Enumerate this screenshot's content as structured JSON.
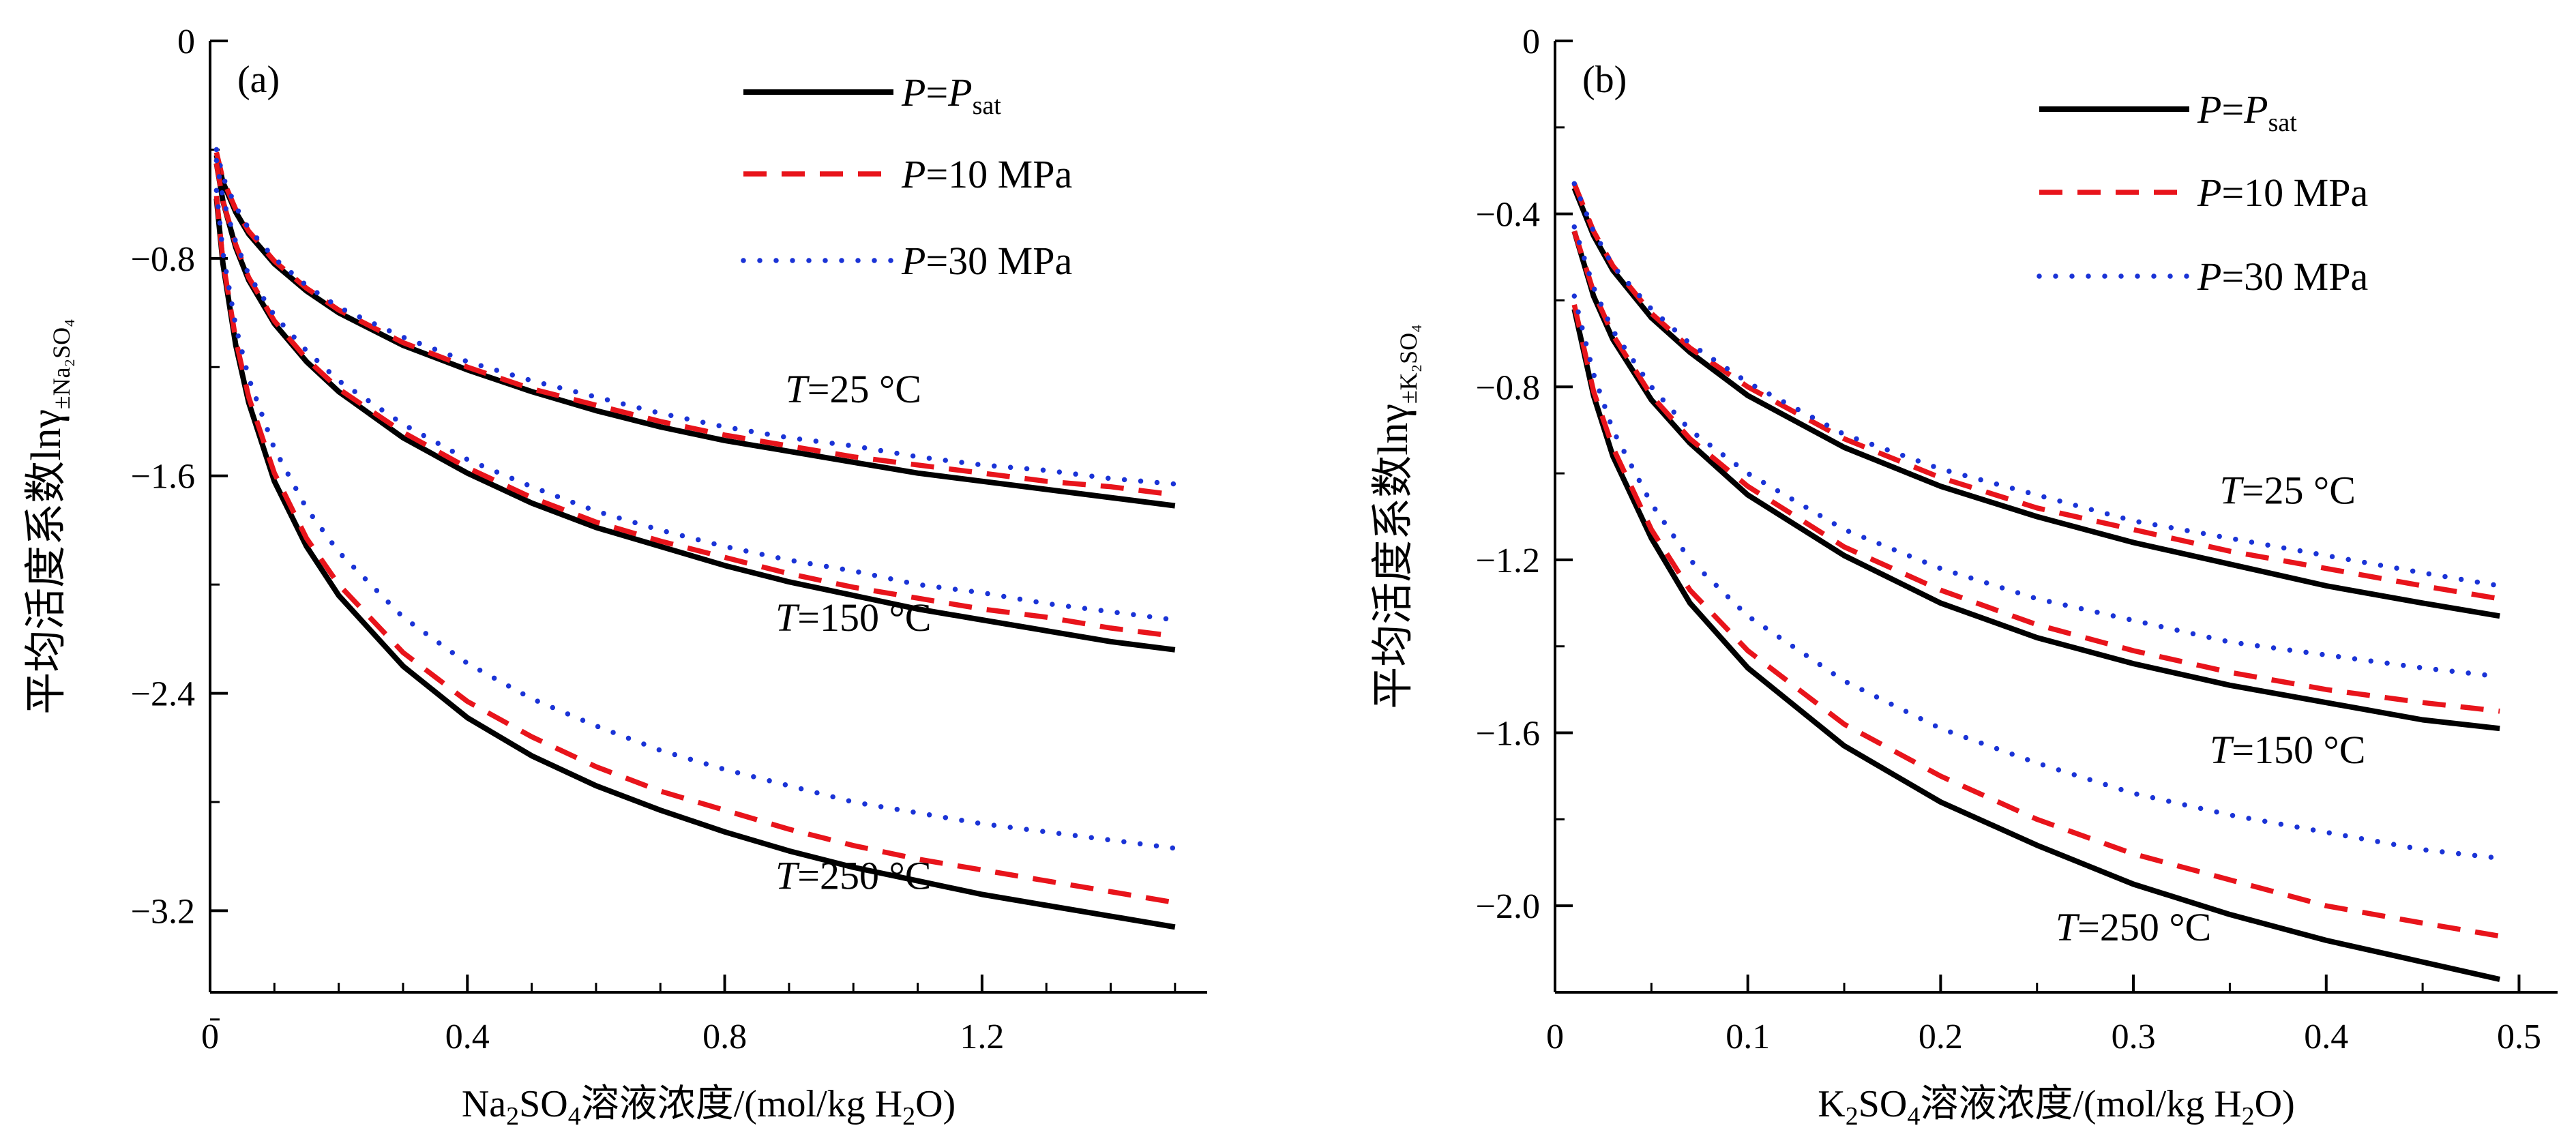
{
  "chart_data": [
    {
      "type": "line",
      "panel_label": "(a)",
      "xlabel": "Na2SO4溶液浓度/(mol/kg H2O)",
      "xlabel_parts": {
        "pre": "Na",
        "sub1": "2",
        "mid": "SO",
        "sub2": "4",
        "post": "溶液浓度/(mol/kg H",
        "sub3": "2",
        "end": "O)"
      },
      "ylabel": "平均活度系数lnγ±Na2SO4",
      "ylabel_parts": {
        "main": "平均活度系数lnγ",
        "sub": "±Na₂SO₄"
      },
      "xlim": [
        0,
        1.55
      ],
      "ylim": [
        -3.5,
        0
      ],
      "xticks": [
        0.4,
        0.8,
        1.2
      ],
      "xtick_labels": [
        "0.4",
        "0.8",
        "1.2"
      ],
      "yticks": [
        0,
        -0.8,
        -1.6,
        -2.4,
        -3.2
      ],
      "ytick_labels": [
        "0",
        "−0.8",
        "−1.6",
        "−2.4",
        "−3.2"
      ],
      "x_minor_step": 0.1,
      "y_minor_step": 0.4,
      "grid": false,
      "legend_position": "top-right",
      "legend": [
        {
          "label": "P=P",
          "label_sub": "sat",
          "style": "solid",
          "color": "#000000"
        },
        {
          "label": "P=10 MPa",
          "style": "dashed",
          "color": "#e8141b"
        },
        {
          "label": "P=30 MPa",
          "style": "dotted",
          "color": "#1a33d6"
        }
      ],
      "x": [
        0.01,
        0.02,
        0.04,
        0.06,
        0.1,
        0.15,
        0.2,
        0.3,
        0.4,
        0.5,
        0.6,
        0.7,
        0.8,
        0.9,
        1.0,
        1.1,
        1.2,
        1.3,
        1.4,
        1.5
      ],
      "groups": [
        {
          "label": "T=25 °C",
          "label_at": [
            1.0,
            -1.33
          ],
          "series": [
            {
              "style": "solid",
              "values": [
                -0.42,
                -0.52,
                -0.63,
                -0.71,
                -0.82,
                -0.92,
                -1.0,
                -1.12,
                -1.21,
                -1.29,
                -1.36,
                -1.42,
                -1.47,
                -1.51,
                -1.55,
                -1.59,
                -1.62,
                -1.65,
                -1.68,
                -1.71
              ]
            },
            {
              "style": "dashed",
              "values": [
                -0.41,
                -0.51,
                -0.62,
                -0.7,
                -0.81,
                -0.91,
                -0.99,
                -1.11,
                -1.2,
                -1.28,
                -1.34,
                -1.4,
                -1.45,
                -1.49,
                -1.53,
                -1.56,
                -1.59,
                -1.62,
                -1.64,
                -1.67
              ]
            },
            {
              "style": "dotted",
              "values": [
                -0.4,
                -0.5,
                -0.61,
                -0.69,
                -0.8,
                -0.9,
                -0.98,
                -1.09,
                -1.18,
                -1.25,
                -1.31,
                -1.37,
                -1.42,
                -1.46,
                -1.49,
                -1.53,
                -1.56,
                -1.58,
                -1.61,
                -1.63
              ]
            }
          ]
        },
        {
          "label": "T=150 °C",
          "label_at": [
            1.0,
            -2.17
          ],
          "series": [
            {
              "style": "solid",
              "values": [
                -0.45,
                -0.59,
                -0.76,
                -0.88,
                -1.04,
                -1.18,
                -1.29,
                -1.46,
                -1.59,
                -1.7,
                -1.79,
                -1.86,
                -1.93,
                -1.99,
                -2.04,
                -2.09,
                -2.13,
                -2.17,
                -2.21,
                -2.24
              ]
            },
            {
              "style": "dashed",
              "values": [
                -0.45,
                -0.59,
                -0.75,
                -0.87,
                -1.03,
                -1.17,
                -1.28,
                -1.44,
                -1.57,
                -1.68,
                -1.77,
                -1.84,
                -1.9,
                -1.96,
                -2.01,
                -2.05,
                -2.09,
                -2.12,
                -2.16,
                -2.19
              ]
            },
            {
              "style": "dotted",
              "values": [
                -0.44,
                -0.58,
                -0.74,
                -0.86,
                -1.01,
                -1.14,
                -1.25,
                -1.41,
                -1.54,
                -1.64,
                -1.73,
                -1.8,
                -1.86,
                -1.91,
                -1.95,
                -2.0,
                -2.03,
                -2.07,
                -2.1,
                -2.13
              ]
            }
          ]
        },
        {
          "label": "T=250 °C",
          "label_at": [
            1.0,
            -3.12
          ],
          "series": [
            {
              "style": "solid",
              "values": [
                -0.58,
                -0.82,
                -1.12,
                -1.33,
                -1.62,
                -1.86,
                -2.04,
                -2.3,
                -2.49,
                -2.63,
                -2.74,
                -2.83,
                -2.91,
                -2.98,
                -3.04,
                -3.09,
                -3.14,
                -3.18,
                -3.22,
                -3.26
              ]
            },
            {
              "style": "dashed",
              "values": [
                -0.57,
                -0.81,
                -1.1,
                -1.31,
                -1.59,
                -1.83,
                -2.0,
                -2.25,
                -2.43,
                -2.56,
                -2.67,
                -2.76,
                -2.83,
                -2.9,
                -2.96,
                -3.01,
                -3.05,
                -3.09,
                -3.13,
                -3.17
              ]
            },
            {
              "style": "dotted",
              "values": [
                -0.55,
                -0.78,
                -1.05,
                -1.24,
                -1.5,
                -1.72,
                -1.88,
                -2.12,
                -2.29,
                -2.42,
                -2.52,
                -2.61,
                -2.68,
                -2.74,
                -2.8,
                -2.84,
                -2.88,
                -2.91,
                -2.94,
                -2.97
              ]
            }
          ]
        }
      ]
    },
    {
      "type": "line",
      "panel_label": "(b)",
      "xlabel": "K2SO4溶液浓度/(mol/kg H2O)",
      "xlabel_parts": {
        "pre": "K",
        "sub1": "2",
        "mid": "SO",
        "sub2": "4",
        "post": "溶液浓度/(mol/kg H",
        "sub3": "2",
        "end": "O)"
      },
      "ylabel": "平均活度系数lnγ±K2SO4",
      "ylabel_parts": {
        "main": "平均活度系数lnγ",
        "sub": "±K₂SO₄"
      },
      "xlim": [
        0,
        0.52
      ],
      "ylim": [
        -2.2,
        0
      ],
      "xticks": [
        0.1,
        0.2,
        0.3,
        0.4,
        0.5
      ],
      "xtick_labels": [
        "0.1",
        "0.2",
        "0.3",
        "0.4",
        "0.5"
      ],
      "yticks": [
        0,
        -0.4,
        -0.8,
        -1.2,
        -1.6,
        -2.0
      ],
      "ytick_labels": [
        "0",
        "−0.4",
        "−0.8",
        "−1.2",
        "−1.6",
        "−2.0"
      ],
      "x_minor_step": 0.05,
      "y_minor_step": 0.2,
      "grid": false,
      "legend_position": "top-right",
      "legend": [
        {
          "label": "P=P",
          "label_sub": "sat",
          "style": "solid",
          "color": "#000000"
        },
        {
          "label": "P=10 MPa",
          "style": "dashed",
          "color": "#e8141b"
        },
        {
          "label": "P=30 MPa",
          "style": "dotted",
          "color": "#1a33d6"
        }
      ],
      "x": [
        0.01,
        0.02,
        0.03,
        0.05,
        0.07,
        0.1,
        0.15,
        0.2,
        0.25,
        0.3,
        0.35,
        0.4,
        0.45,
        0.49
      ],
      "groups": [
        {
          "label": "T=25 °C",
          "label_at": [
            0.38,
            -1.07
          ],
          "series": [
            {
              "style": "solid",
              "values": [
                -0.34,
                -0.45,
                -0.53,
                -0.64,
                -0.72,
                -0.82,
                -0.94,
                -1.03,
                -1.1,
                -1.16,
                -1.21,
                -1.26,
                -1.3,
                -1.33
              ]
            },
            {
              "style": "dashed",
              "values": [
                -0.33,
                -0.44,
                -0.52,
                -0.63,
                -0.71,
                -0.8,
                -0.92,
                -1.01,
                -1.08,
                -1.13,
                -1.18,
                -1.22,
                -1.26,
                -1.29
              ]
            },
            {
              "style": "dotted",
              "values": [
                -0.33,
                -0.44,
                -0.52,
                -0.62,
                -0.7,
                -0.79,
                -0.91,
                -0.99,
                -1.05,
                -1.11,
                -1.15,
                -1.19,
                -1.23,
                -1.26
              ]
            }
          ]
        },
        {
          "label": "T=150 °C",
          "label_at": [
            0.38,
            -1.67
          ],
          "series": [
            {
              "style": "solid",
              "values": [
                -0.44,
                -0.59,
                -0.69,
                -0.83,
                -0.93,
                -1.05,
                -1.19,
                -1.3,
                -1.38,
                -1.44,
                -1.49,
                -1.53,
                -1.57,
                -1.59
              ]
            },
            {
              "style": "dashed",
              "values": [
                -0.44,
                -0.58,
                -0.68,
                -0.82,
                -0.92,
                -1.03,
                -1.17,
                -1.27,
                -1.35,
                -1.41,
                -1.46,
                -1.5,
                -1.53,
                -1.55
              ]
            },
            {
              "style": "dotted",
              "values": [
                -0.43,
                -0.57,
                -0.67,
                -0.8,
                -0.9,
                -1.0,
                -1.13,
                -1.22,
                -1.29,
                -1.34,
                -1.39,
                -1.42,
                -1.45,
                -1.47
              ]
            }
          ]
        },
        {
          "label": "T=250 °C",
          "label_at": [
            0.3,
            -2.08
          ],
          "series": [
            {
              "style": "solid",
              "values": [
                -0.62,
                -0.82,
                -0.96,
                -1.15,
                -1.3,
                -1.45,
                -1.63,
                -1.76,
                -1.86,
                -1.95,
                -2.02,
                -2.08,
                -2.13,
                -2.17
              ]
            },
            {
              "style": "dashed",
              "values": [
                -0.61,
                -0.81,
                -0.94,
                -1.13,
                -1.27,
                -1.41,
                -1.58,
                -1.7,
                -1.8,
                -1.88,
                -1.94,
                -2.0,
                -2.04,
                -2.07
              ]
            },
            {
              "style": "dotted",
              "values": [
                -0.59,
                -0.77,
                -0.9,
                -1.07,
                -1.2,
                -1.33,
                -1.48,
                -1.59,
                -1.67,
                -1.74,
                -1.79,
                -1.83,
                -1.87,
                -1.89
              ]
            }
          ]
        }
      ]
    }
  ]
}
